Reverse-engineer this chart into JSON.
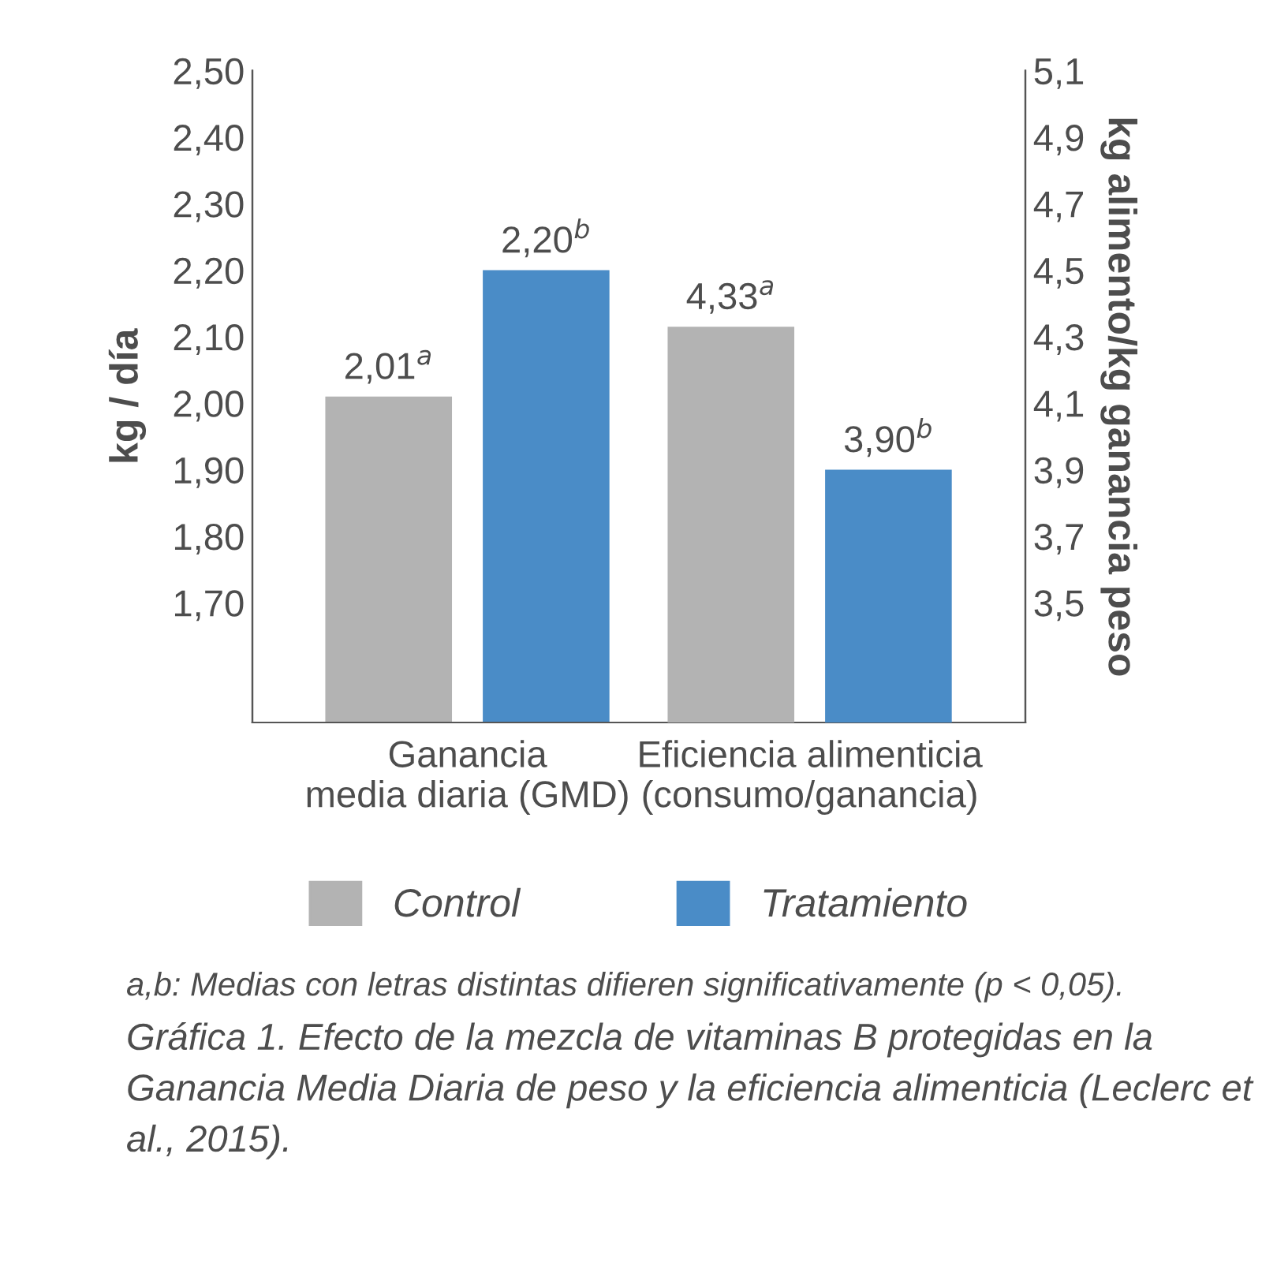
{
  "chart_data": {
    "type": "bar",
    "ylabel": "kg / día",
    "y2label": "kg alimento/kg ganancia peso",
    "categories": [
      "Ganancia\nmedia diaria (GMD)",
      "Eficiencia alimenticia\n(consumo/ganancia)"
    ],
    "series": [
      {
        "name": "Control",
        "color": "#b3b3b3",
        "values": [
          2.01,
          null
        ],
        "value_labels": [
          "2,01$^{a}$",
          null
        ]
      },
      {
        "name": "Tratamiento",
        "color": "#4a8cc7",
        "values": [
          2.2,
          null
        ],
        "value_labels": [
          "2,20$^{b}$",
          null
        ]
      },
      {
        "color": "#b3b3b3",
        "axis": "y2",
        "values": [
          null,
          4.33
        ],
        "value_labels": [
          null,
          "4,33$^{a}$"
        ]
      },
      {
        "color": "#4a8cc7",
        "axis": "y2",
        "values": [
          null,
          3.9
        ],
        "value_labels": [
          null,
          "3,90$^{b}$"
        ]
      }
    ],
    "ylim": [
      1.52,
      2.5
    ],
    "yticks": [
      {
        "value": 1.7,
        "label": "1,70"
      },
      {
        "value": 1.8,
        "label": "1,80"
      },
      {
        "value": 1.9,
        "label": "1,90"
      },
      {
        "value": 2.0,
        "label": "2,00"
      },
      {
        "value": 2.1,
        "label": "2,10"
      },
      {
        "value": 2.2,
        "label": "2,20"
      },
      {
        "value": 2.3,
        "label": "2,30"
      },
      {
        "value": 2.4,
        "label": "2,40"
      },
      {
        "value": 2.5,
        "label": "2,50"
      }
    ],
    "y2lim": [
      3.14,
      5.1
    ],
    "y2ticks": [
      {
        "value": 3.5,
        "label": "3,5"
      },
      {
        "value": 3.7,
        "label": "3,7"
      },
      {
        "value": 3.9,
        "label": "3,9"
      },
      {
        "value": 4.1,
        "label": "4,1"
      },
      {
        "value": 4.3,
        "label": "4,3"
      },
      {
        "value": 4.5,
        "label": "4,5"
      },
      {
        "value": 4.7,
        "label": "4,7"
      },
      {
        "value": 4.9,
        "label": "4,9"
      },
      {
        "value": 5.1,
        "label": "5,1"
      }
    ],
    "legend": "bottom",
    "grid": false,
    "annotations": [
      "a,b: Medias con letras distintas difieren significativamente (p < 0,05).",
      "Gráfica 1. Efecto de la mezcla de vitaminas B protegidas en la Ganancia Media Diaria de peso y la eficiencia alimenticia (Leclerc et al., 2015)."
    ]
  }
}
